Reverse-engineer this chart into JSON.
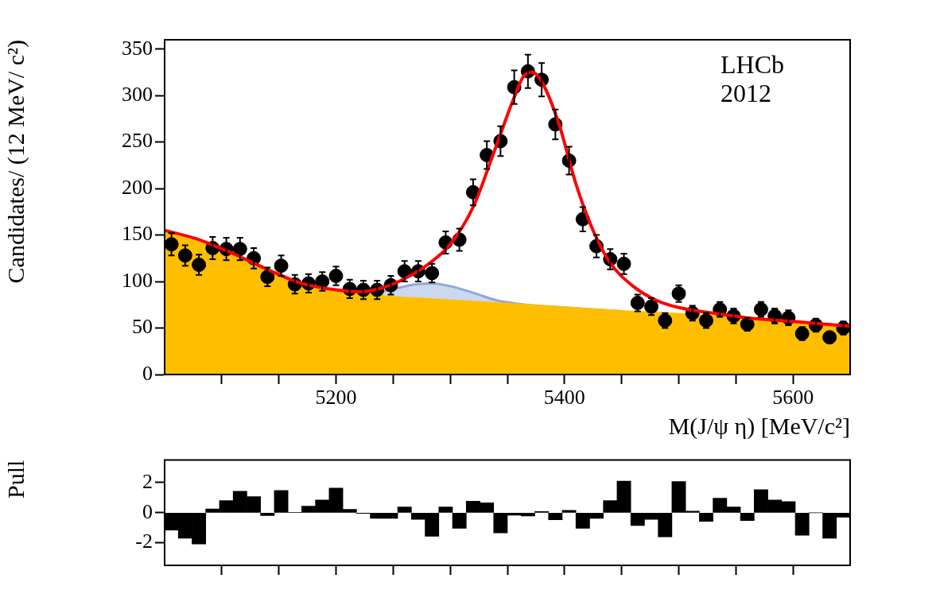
{
  "chart_data": [
    {
      "type": "scatter",
      "xlabel": "M(J/ψ η) [MeV/c²]",
      "ylabel": "Candidates/ (12 MeV/ c²)",
      "xlim": [
        5050,
        5650
      ],
      "ylim": [
        0,
        360
      ],
      "xticks": [
        {
          "value": 5100,
          "label": null
        },
        {
          "value": 5150,
          "label": null
        },
        5200,
        {
          "value": 5250,
          "label": null
        },
        {
          "value": 5300,
          "label": null
        },
        {
          "value": 5350,
          "label": null
        },
        5400,
        {
          "value": 5450,
          "label": null
        },
        {
          "value": 5500,
          "label": null
        },
        {
          "value": 5550,
          "label": null
        },
        5600
      ],
      "yticks": [
        0,
        50,
        100,
        150,
        200,
        250,
        300,
        350
      ],
      "grid": false,
      "legend": false,
      "annotations": [
        "LHCb",
        "2012"
      ],
      "series": [
        {
          "type": "area",
          "color": "#8fa8dc",
          "x": [
            5210,
            5230,
            5250,
            5270,
            5285,
            5300,
            5320,
            5340,
            5360,
            5400,
            5450
          ],
          "values": [
            88,
            87,
            92,
            97,
            98,
            95,
            88,
            80,
            76,
            72,
            68
          ]
        },
        {
          "type": "area",
          "color": "#ffbf00",
          "x": [
            5050,
            5080,
            5110,
            5140,
            5170,
            5200,
            5220,
            5240,
            5280,
            5320,
            5360,
            5400,
            5450,
            5500,
            5550,
            5600,
            5650
          ],
          "values": [
            152,
            142,
            128,
            112,
            98,
            90,
            87,
            84,
            81,
            78,
            75,
            72,
            68,
            65,
            61,
            57,
            52
          ]
        },
        {
          "type": "line",
          "color": "#ff0000",
          "x": [
            5050,
            5080,
            5110,
            5140,
            5170,
            5200,
            5220,
            5240,
            5260,
            5280,
            5300,
            5320,
            5340,
            5355,
            5365,
            5372,
            5380,
            5395,
            5410,
            5425,
            5440,
            5460,
            5480,
            5500,
            5530,
            5560,
            5600,
            5650
          ],
          "values": [
            155,
            145,
            130,
            113,
            98,
            91,
            89,
            93,
            103,
            118,
            140,
            180,
            245,
            295,
            322,
            325,
            315,
            270,
            205,
            155,
            120,
            95,
            80,
            72,
            66,
            61,
            57,
            52
          ]
        },
        {
          "type": "scatter",
          "color": "#000000",
          "marker": "circle",
          "x": [
            5056,
            5068,
            5080,
            5092,
            5104,
            5116,
            5128,
            5140,
            5152,
            5164,
            5176,
            5188,
            5200,
            5212,
            5224,
            5236,
            5248,
            5260,
            5272,
            5284,
            5296,
            5308,
            5320,
            5332,
            5344,
            5356,
            5368,
            5380,
            5392,
            5404,
            5416,
            5428,
            5440,
            5452,
            5464,
            5476,
            5488,
            5500,
            5512,
            5524,
            5536,
            5548,
            5560,
            5572,
            5584,
            5596,
            5608,
            5620,
            5632,
            5644
          ],
          "values": [
            140,
            128,
            118,
            136,
            135,
            135,
            125,
            105,
            117,
            97,
            98,
            100,
            106,
            92,
            91,
            91,
            96,
            111,
            111,
            109,
            142,
            145,
            196,
            236,
            251,
            309,
            326,
            317,
            269,
            230,
            167,
            138,
            124,
            119,
            77,
            73,
            58,
            87,
            66,
            58,
            70,
            63,
            54,
            70,
            63,
            61,
            44,
            53,
            40,
            50
          ],
          "errors": [
            12,
            11,
            11,
            12,
            12,
            12,
            11,
            10,
            11,
            10,
            10,
            10,
            10,
            10,
            10,
            10,
            10,
            11,
            11,
            10,
            12,
            12,
            14,
            15,
            16,
            18,
            18,
            18,
            16,
            15,
            13,
            12,
            11,
            11,
            9,
            9,
            8,
            9,
            8,
            8,
            8,
            8,
            7,
            8,
            8,
            8,
            7,
            7,
            6,
            7
          ]
        }
      ]
    },
    {
      "type": "histogram",
      "ylabel": "Pull",
      "color": "#000000",
      "xlim": [
        5050,
        5650
      ],
      "ylim": [
        -3.5,
        3.5
      ],
      "xticks": [
        {
          "value": 5100,
          "label": null
        },
        {
          "value": 5150,
          "label": null
        },
        {
          "value": 5200,
          "label": null
        },
        {
          "value": 5250,
          "label": null
        },
        {
          "value": 5300,
          "label": null
        },
        {
          "value": 5350,
          "label": null
        },
        {
          "value": 5400,
          "label": null
        },
        {
          "value": 5450,
          "label": null
        },
        {
          "value": 5500,
          "label": null
        },
        {
          "value": 5550,
          "label": null
        },
        {
          "value": 5600,
          "label": null
        }
      ],
      "yticks": [
        -2,
        0,
        2
      ],
      "tick_labels": "y",
      "grid": false,
      "legend": false,
      "bins": [
        5050,
        5062,
        5074,
        5086,
        5098,
        5110,
        5122,
        5134,
        5146,
        5158,
        5170,
        5182,
        5194,
        5206,
        5218,
        5230,
        5242,
        5254,
        5266,
        5278,
        5290,
        5302,
        5314,
        5326,
        5338,
        5350,
        5362,
        5374,
        5386,
        5398,
        5410,
        5422,
        5434,
        5446,
        5458,
        5470,
        5482,
        5494,
        5506,
        5518,
        5530,
        5542,
        5554,
        5566,
        5578,
        5590,
        5602,
        5614,
        5626,
        5638,
        5650
      ],
      "values": [
        -1.15,
        -1.7,
        -2.08,
        0.25,
        0.8,
        1.42,
        1.07,
        -0.19,
        1.48,
        0.02,
        0.44,
        0.85,
        1.64,
        0.22,
        -0.05,
        -0.38,
        -0.38,
        0.38,
        -0.44,
        -1.56,
        0.38,
        -1.04,
        0.77,
        0.66,
        -1.34,
        -0.16,
        -0.22,
        0.08,
        -0.47,
        0.16,
        -1.04,
        -0.38,
        0.8,
        2.1,
        -0.85,
        -0.44,
        -1.6,
        2.08,
        0.11,
        -0.58,
        0.96,
        0.38,
        -0.52,
        1.53,
        0.85,
        0.74,
        -1.5,
        0,
        -1.7,
        -0.3
      ]
    }
  ]
}
